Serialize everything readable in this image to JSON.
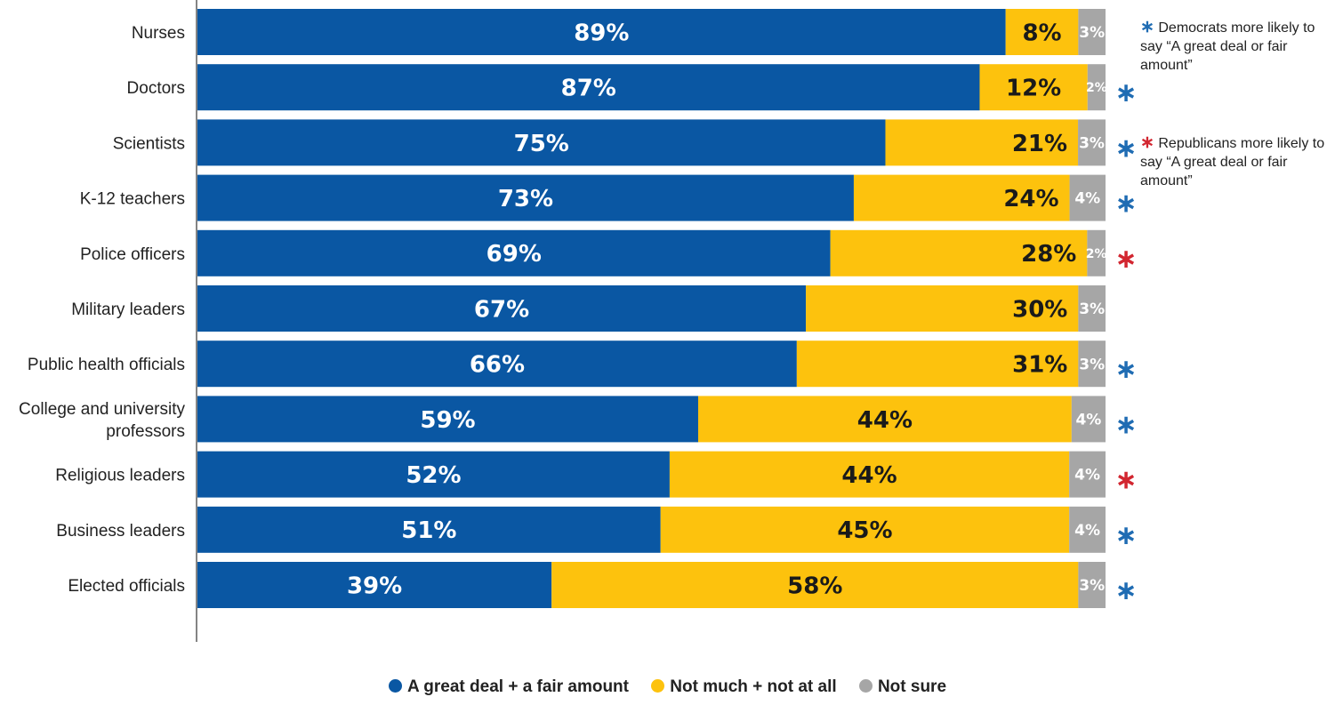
{
  "colors": {
    "great_deal": "#0a57a3",
    "not_much": "#fdc20d",
    "not_sure": "#a6a6a6",
    "democrat_star": "#1f6cb3",
    "republican_star": "#d22630"
  },
  "chart_data": {
    "type": "bar",
    "orientation": "horizontal-stacked",
    "categories": [
      "Nurses",
      "Doctors",
      "Scientists",
      "K-12 teachers",
      "Police officers",
      "Military leaders",
      "Public health officials",
      "College and university professors",
      "Religious leaders",
      "Business leaders",
      "Elected officials"
    ],
    "category_lines": [
      [
        "Nurses"
      ],
      [
        "Doctors"
      ],
      [
        "Scientists"
      ],
      [
        "K-12 teachers"
      ],
      [
        "Police officers"
      ],
      [
        "Military leaders"
      ],
      [
        "Public health officials"
      ],
      [
        "College and university",
        "professors"
      ],
      [
        "Religious leaders"
      ],
      [
        "Business leaders"
      ],
      [
        "Elected officials"
      ]
    ],
    "series": [
      {
        "name": "A great deal + a fair amount",
        "values": [
          89,
          87,
          75,
          73,
          69,
          67,
          66,
          59,
          52,
          51,
          39
        ]
      },
      {
        "name": "Not much + not at all",
        "values": [
          8,
          12,
          21,
          24,
          28,
          30,
          31,
          44,
          44,
          45,
          58
        ]
      },
      {
        "name": "Not sure",
        "values": [
          3,
          2,
          3,
          4,
          2,
          3,
          3,
          4,
          4,
          4,
          3
        ]
      }
    ],
    "value_suffix": "%",
    "party_markers": [
      "",
      "D",
      "D",
      "D",
      "R",
      "",
      "D",
      "D",
      "R",
      "D",
      "D"
    ],
    "star_glyph": "∗"
  },
  "notes": {
    "democrats": "Democrats more likely to say “A great deal or fair amount”",
    "republicans": "Republicans more likely to say “A great deal or fair amount”"
  },
  "legend": [
    {
      "label": "A great deal + a fair amount"
    },
    {
      "label": "Not much + not at all"
    },
    {
      "label": "Not sure"
    }
  ]
}
